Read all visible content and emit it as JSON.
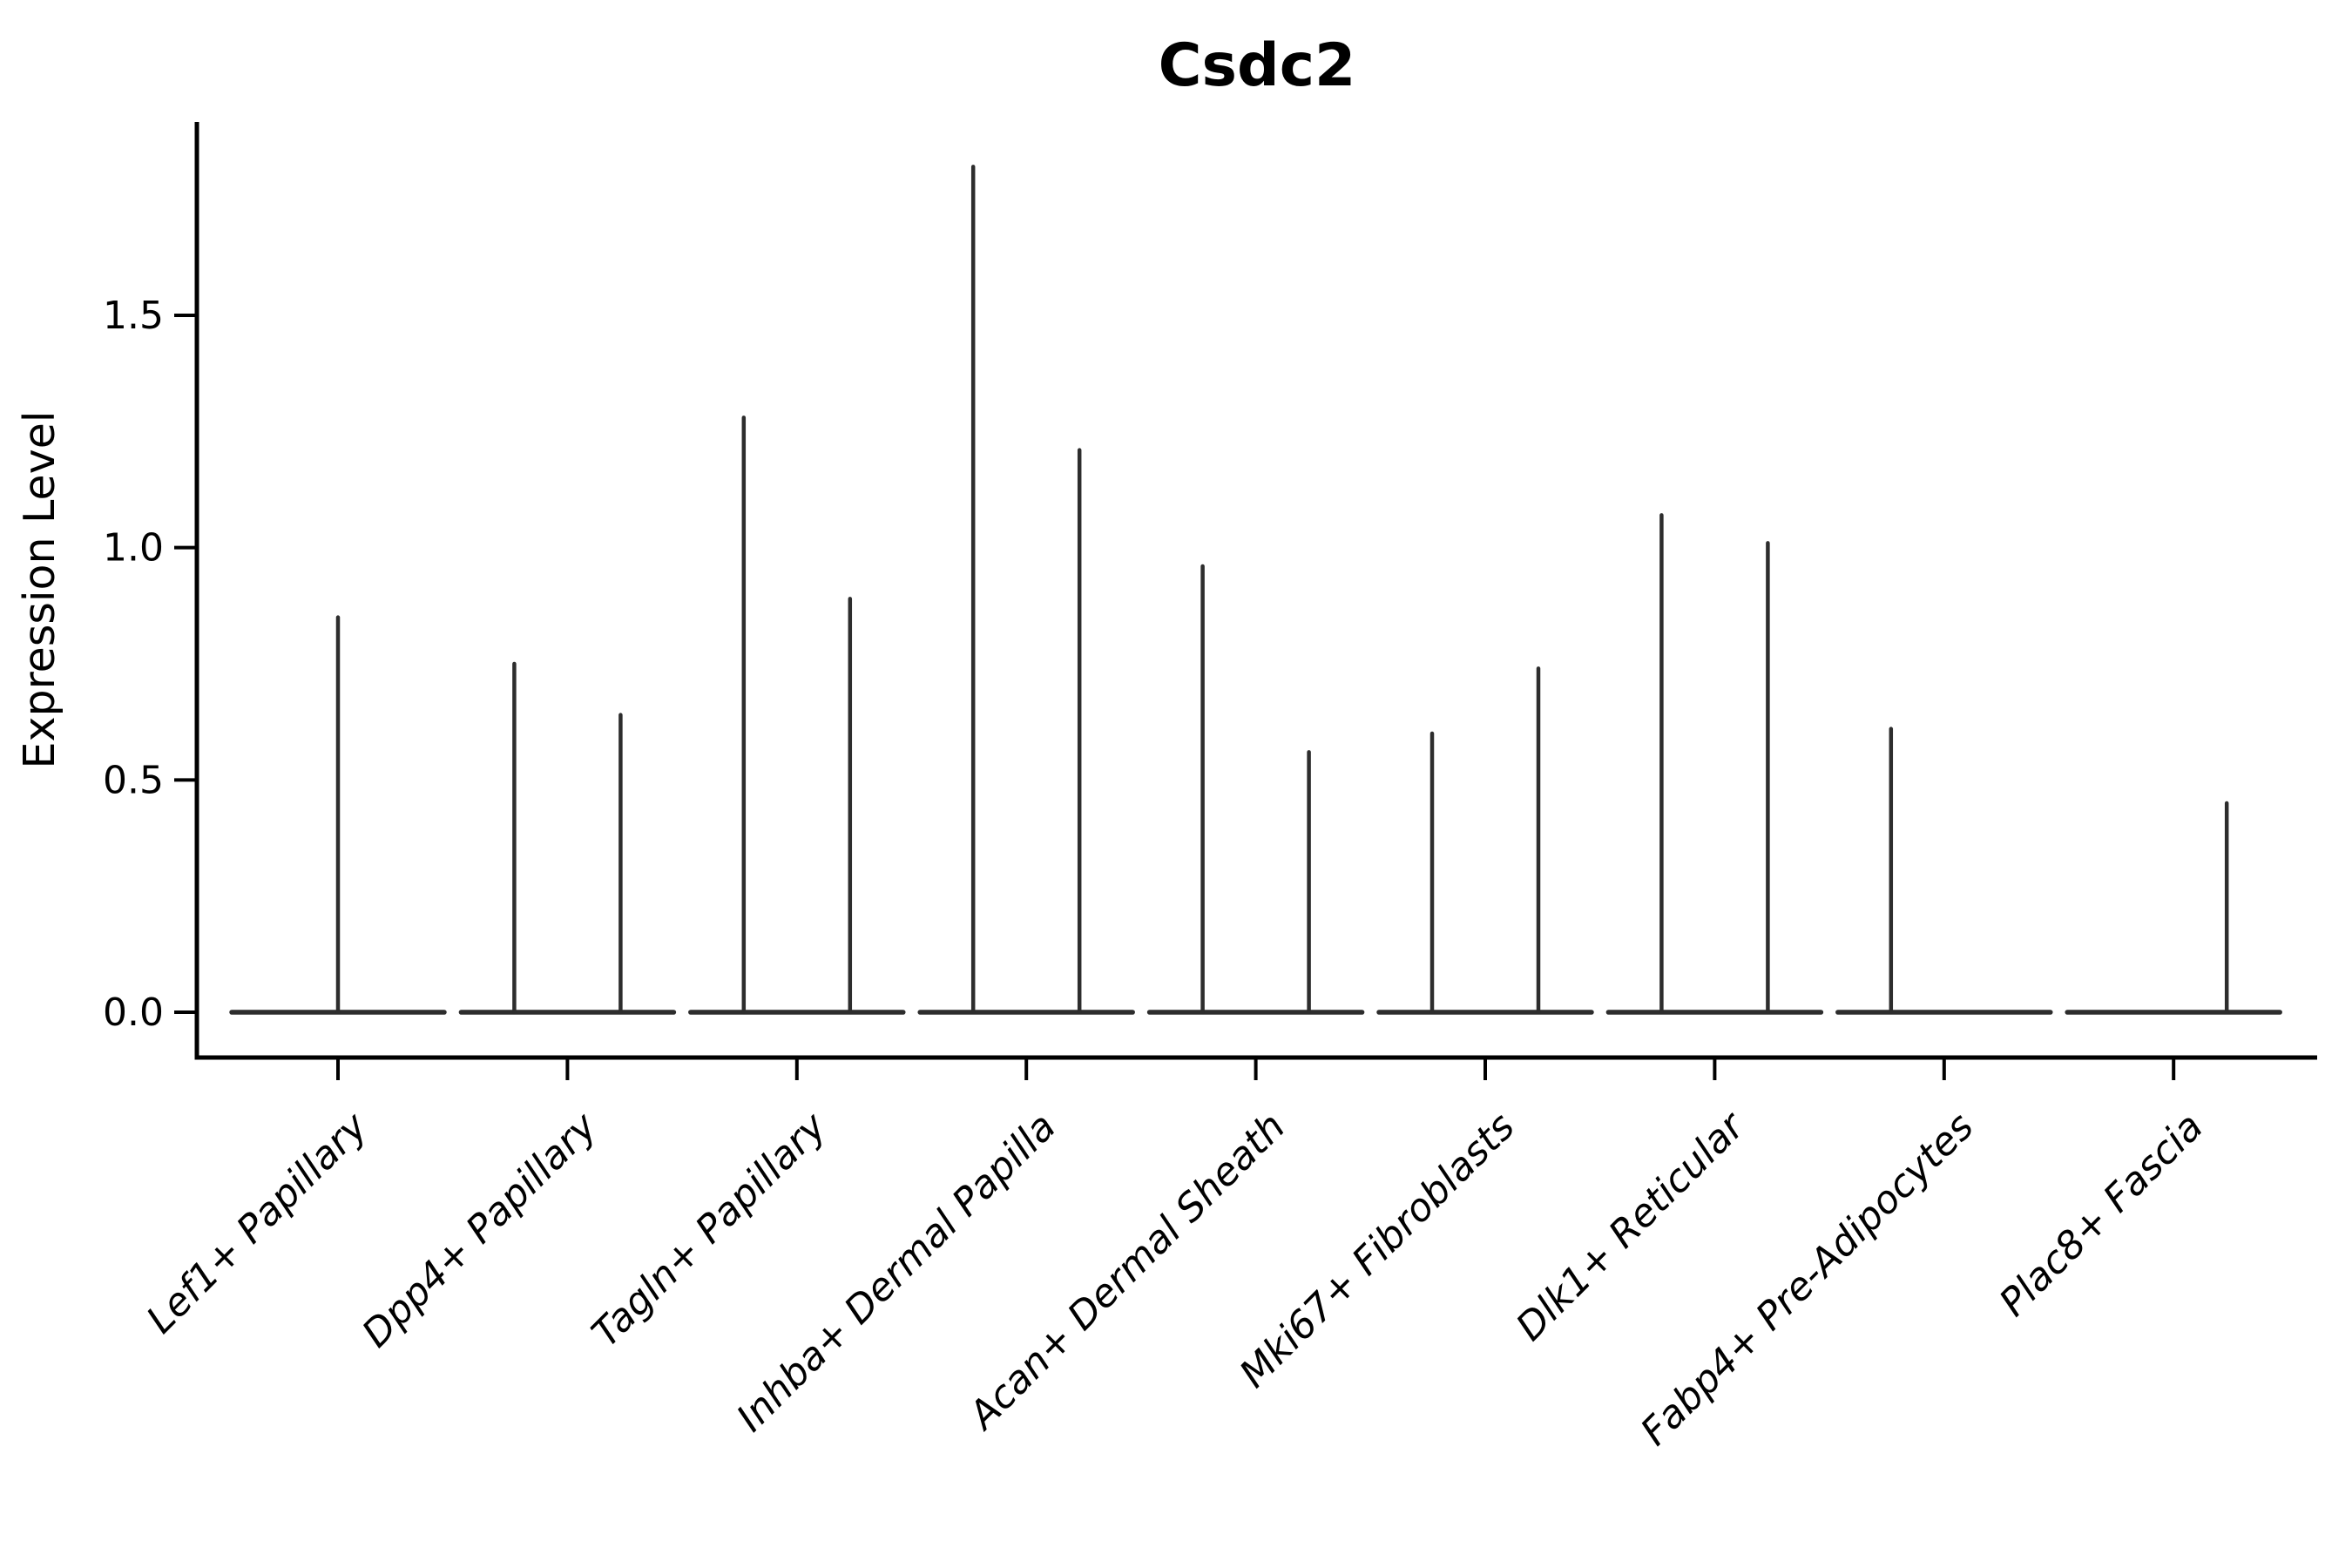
{
  "title": "Csdc2",
  "y_axis": {
    "label": "Expression Level",
    "tick_labels": [
      "0.0",
      "0.5",
      "1.0",
      "1.5"
    ]
  },
  "chart_data": {
    "type": "violin",
    "title": "Csdc2",
    "xlabel": "",
    "ylabel": "Expression Level",
    "ylim": [
      0,
      1.92
    ],
    "yticks": [
      0.0,
      0.5,
      1.0,
      1.5
    ],
    "ytick_labels": [
      "0.0",
      "0.5",
      "1.0",
      "1.5"
    ],
    "grid": false,
    "legend_position": "none",
    "categories": [
      "Lef1+ Papillary",
      "Dpp4+ Papillary",
      "Tagln+ Papillary",
      "Inhba+ Dermal Papilla",
      "Acan+ Dermal Sheath",
      "Mki67+ Fibroblasts",
      "Dlk1+ Reticular",
      "Fabp4+ Pre-Adipocytes",
      "Plac8+ Fascia"
    ],
    "violin_shape_note": "Each violin is needle-shaped: bulk of density at expression 0 (flat baseline across violin width) with thin spikes reaching the max expression value; offset is fraction of violin width from category center",
    "violins": [
      {
        "category": "Lef1+ Papillary",
        "needles": [
          {
            "offset": 0,
            "peak": 0.85
          }
        ]
      },
      {
        "category": "Dpp4+ Papillary",
        "needles": [
          {
            "offset": -0.25,
            "peak": 0.75
          },
          {
            "offset": 0.25,
            "peak": 0.64
          }
        ]
      },
      {
        "category": "Tagln+ Papillary",
        "needles": [
          {
            "offset": -0.25,
            "peak": 1.28
          },
          {
            "offset": 0.25,
            "peak": 0.89
          }
        ]
      },
      {
        "category": "Inhba+ Dermal Papilla",
        "needles": [
          {
            "offset": -0.25,
            "peak": 1.82
          },
          {
            "offset": 0.25,
            "peak": 1.21
          }
        ]
      },
      {
        "category": "Acan+ Dermal Sheath",
        "needles": [
          {
            "offset": -0.25,
            "peak": 0.96
          },
          {
            "offset": 0.25,
            "peak": 0.56
          }
        ]
      },
      {
        "category": "Mki67+ Fibroblasts",
        "needles": [
          {
            "offset": -0.25,
            "peak": 0.6
          },
          {
            "offset": 0.25,
            "peak": 0.74
          }
        ]
      },
      {
        "category": "Dlk1+ Reticular",
        "needles": [
          {
            "offset": -0.25,
            "peak": 1.07
          },
          {
            "offset": 0.25,
            "peak": 1.01
          }
        ]
      },
      {
        "category": "Fabp4+ Pre-Adipocytes",
        "needles": [
          {
            "offset": -0.25,
            "peak": 0.61
          }
        ]
      },
      {
        "category": "Plac8+ Fascia",
        "needles": [
          {
            "offset": 0.25,
            "peak": 0.45
          }
        ]
      }
    ],
    "colors": {
      "violin_line": "#2d2d2d",
      "axis": "#000000",
      "text": "#000000",
      "background": "#ffffff"
    }
  }
}
